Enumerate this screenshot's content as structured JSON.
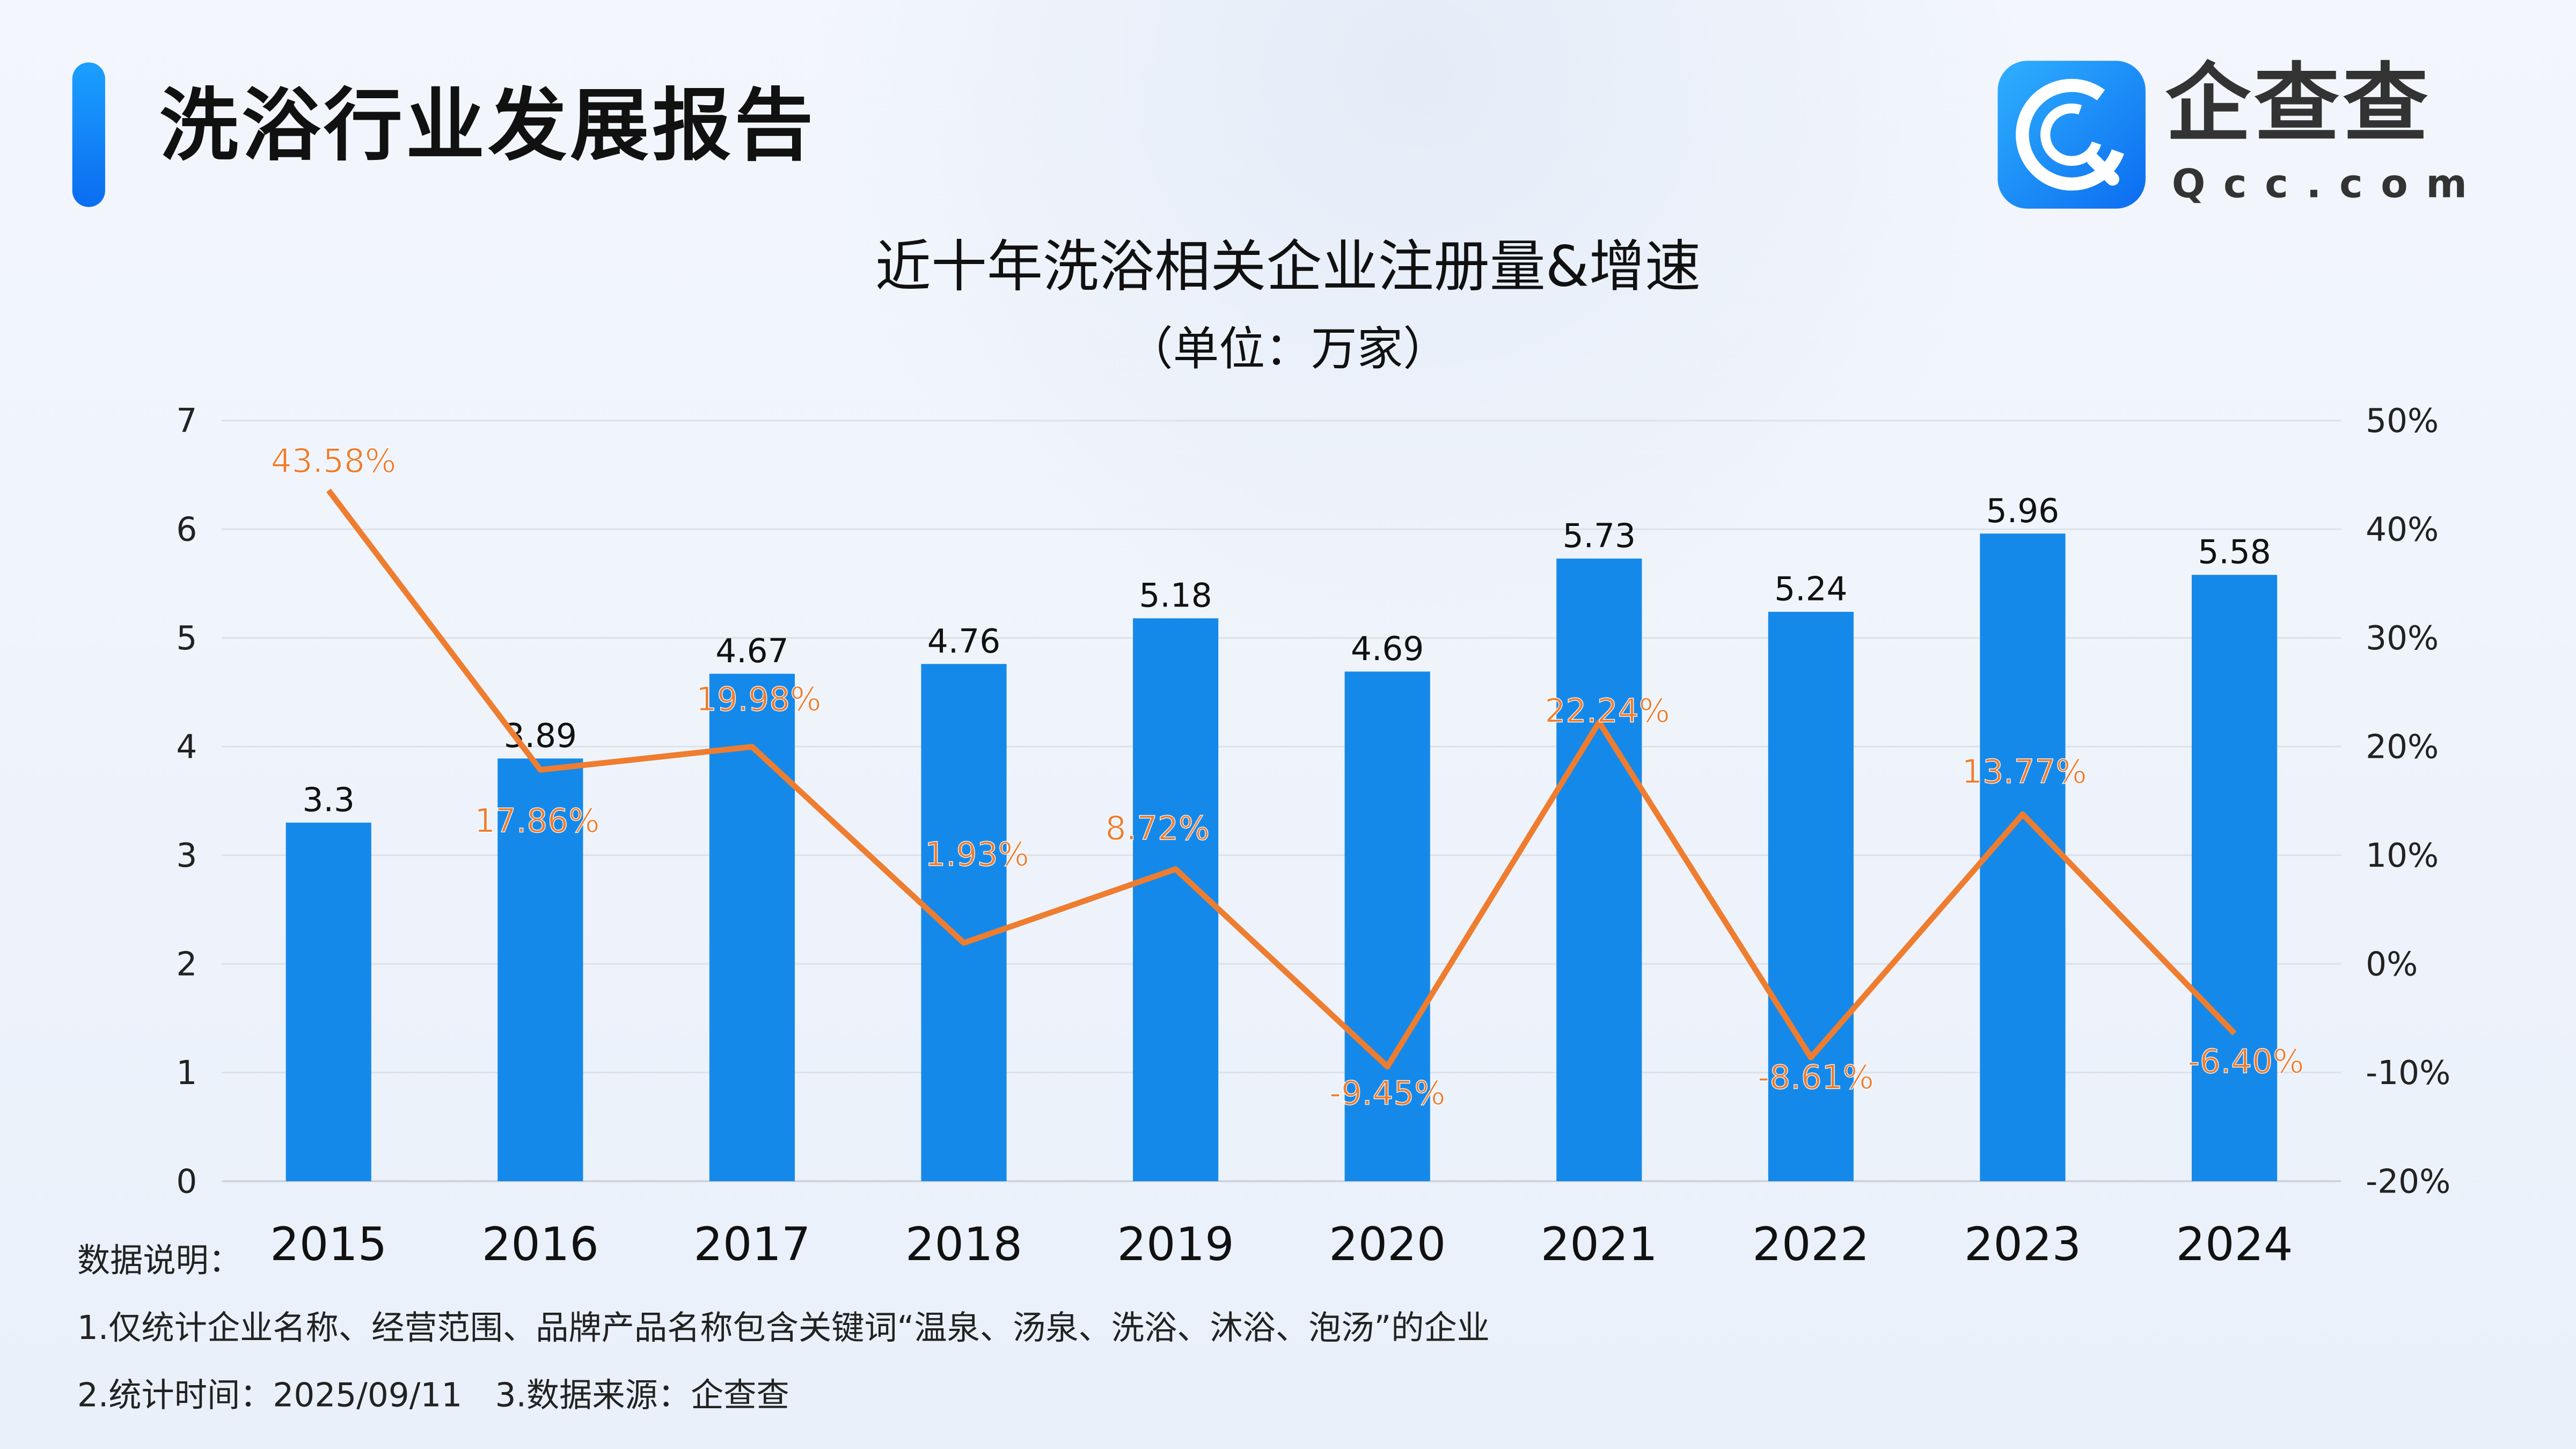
{
  "header": {
    "title": "洗浴行业发展报告",
    "logo_cn": "企查查",
    "logo_en": "Qcc.com"
  },
  "chart_data": {
    "type": "bar+line",
    "title": "近十年洗浴相关企业注册量&增速",
    "subtitle": "（单位：万家）",
    "categories": [
      "2015",
      "2016",
      "2017",
      "2018",
      "2019",
      "2020",
      "2021",
      "2022",
      "2023",
      "2024"
    ],
    "series": [
      {
        "type": "bar",
        "axis": "left",
        "color": "#1589ea",
        "values": [
          3.3,
          3.89,
          4.67,
          4.76,
          5.18,
          4.69,
          5.73,
          5.24,
          5.96,
          5.58
        ],
        "labels": [
          "3.3",
          "3.89",
          "4.67",
          "4.76",
          "5.18",
          "4.69",
          "5.73",
          "5.24",
          "5.96",
          "5.58"
        ]
      },
      {
        "type": "line",
        "axis": "right",
        "color": "#ee7d2f",
        "values": [
          43.58,
          17.86,
          19.98,
          1.93,
          8.72,
          -9.45,
          22.24,
          -8.61,
          13.77,
          -6.4
        ],
        "labels": [
          "43.58%",
          "17.86%",
          "19.98%",
          "1.93%",
          "8.72%",
          "-9.45%",
          "22.24%",
          "-8.61%",
          "13.77%",
          "-6.40%"
        ]
      }
    ],
    "y_left": {
      "range": [
        0,
        7
      ],
      "ticks": [
        "0",
        "1",
        "2",
        "3",
        "4",
        "5",
        "6",
        "7"
      ]
    },
    "y_right": {
      "range": [
        -20,
        50
      ],
      "ticks": [
        "-20%",
        "-10%",
        "0%",
        "10%",
        "20%",
        "30%",
        "40%",
        "50%"
      ]
    },
    "grid": true
  },
  "notes": {
    "heading": "数据说明：",
    "line1": "1.仅统计企业名称、经营范围、品牌产品名称包含关键词“温泉、汤泉、洗浴、沐浴、泡汤”的企业",
    "line2": "2.统计时间：2025/09/11　3.数据来源：企查查"
  }
}
